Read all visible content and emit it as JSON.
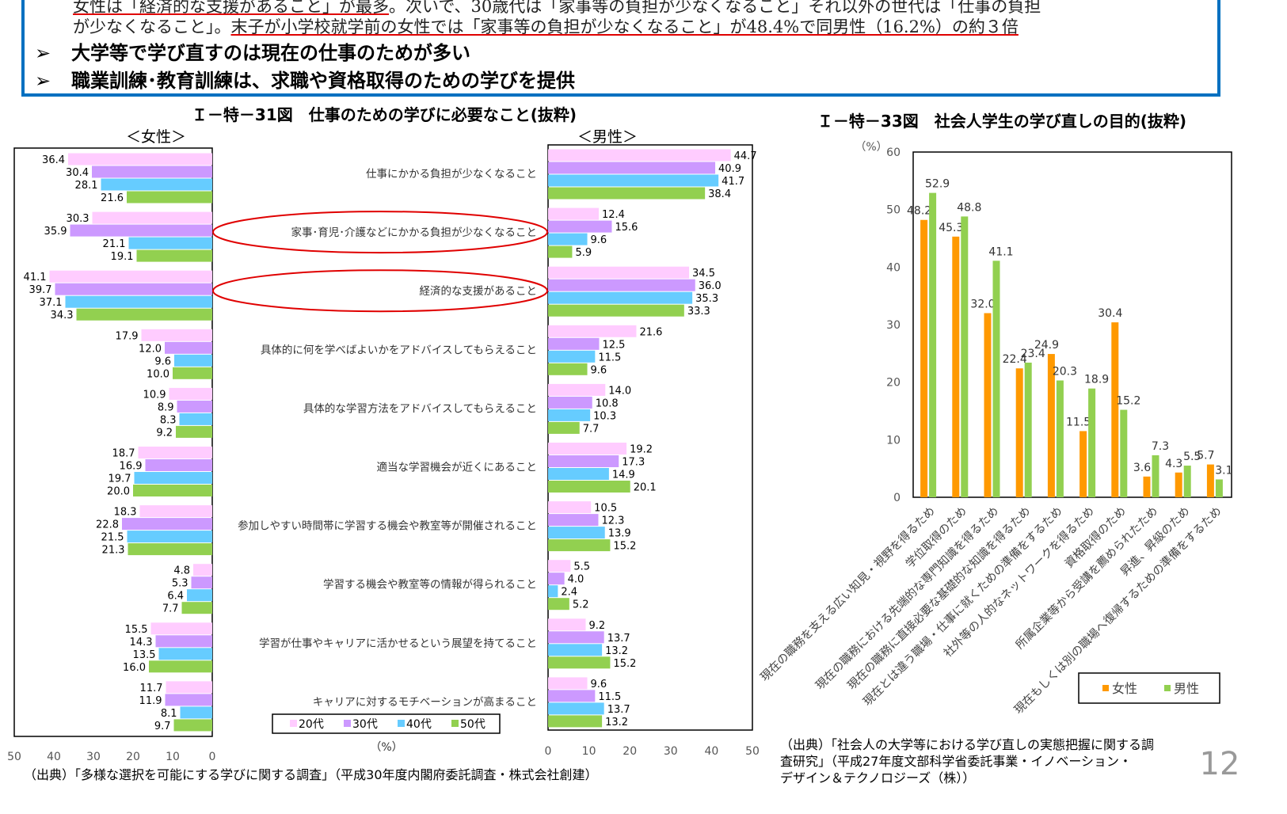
{
  "summary": {
    "line1_underlined": "女性は「経済的な支援があること」が最多",
    "line1_rest": "。次いで、30歳代は「家事等の負担が少なくなること」それ以外の世代は「仕事の負担",
    "line2_start": "が少なくなること」。",
    "line2_underlined": "末子が小学校就学前の女性では「家事等の負担が少なくなること」が48.4%で同男性（16.2%）の約３倍",
    "bullets": [
      "大学等で学び直すのは現在の仕事のためが多い",
      "職業訓練･教育訓練は、求職や資格取得のための学びを提供"
    ],
    "bullet_icon": "arrow-bullet-icon"
  },
  "colors": {
    "20s": "#ffccff",
    "30s": "#cc99ff",
    "40s": "#66ccff",
    "50s": "#92d050",
    "female": "#ff9900",
    "male": "#92d050",
    "frame": "#0070c0",
    "highlight": "#e00000"
  },
  "page_number": "12",
  "chart_data": [
    {
      "type": "bar",
      "orientation": "horizontal",
      "title": "Ｉ－特－31図　仕事のための学びに必要なこと(抜粋)",
      "panels": [
        "＜女性＞",
        "＜男性＞"
      ],
      "unit_label": "（%）",
      "xlim": [
        0,
        50
      ],
      "ticks": [
        "0",
        "10",
        "20",
        "30",
        "40",
        "50"
      ],
      "legend": [
        "20代",
        "30代",
        "40代",
        "50代"
      ],
      "legend_placement": "bottom-center",
      "highlighted_categories": [
        1,
        2
      ],
      "categories": [
        "仕事にかかる負担が少なくなること",
        "家事･育児･介護などにかかる負担が少なくなること",
        "経済的な支援があること",
        "具体的に何を学べばよいかをアドバイスしてもらえること",
        "具体的な学習方法をアドバイスしてもらえること",
        "適当な学習機会が近くにあること",
        "参加しやすい時間帯に学習する機会や教室等が開催されること",
        "学習する機会や教室等の情報が得られること",
        "学習が仕事やキャリアに活かせるという展望を持てること",
        "キャリアに対するモチベーションが高まること"
      ],
      "female": [
        [
          36.4,
          30.4,
          28.1,
          21.6
        ],
        [
          30.3,
          35.9,
          21.1,
          19.1
        ],
        [
          41.1,
          39.7,
          37.1,
          34.3
        ],
        [
          17.9,
          12.0,
          9.6,
          10.0
        ],
        [
          10.9,
          8.9,
          8.3,
          9.2
        ],
        [
          18.7,
          16.9,
          19.7,
          20.0
        ],
        [
          18.3,
          22.8,
          21.5,
          21.3
        ],
        [
          4.8,
          5.3,
          6.4,
          7.7
        ],
        [
          15.5,
          14.3,
          13.5,
          16.0
        ],
        [
          11.7,
          11.9,
          8.1,
          9.7
        ]
      ],
      "male": [
        [
          44.7,
          40.9,
          41.7,
          38.4
        ],
        [
          12.4,
          15.6,
          9.6,
          5.9
        ],
        [
          34.5,
          36.0,
          35.3,
          33.3
        ],
        [
          21.6,
          12.5,
          11.5,
          9.6
        ],
        [
          14.0,
          10.8,
          10.3,
          7.7
        ],
        [
          19.2,
          17.3,
          14.9,
          20.1
        ],
        [
          10.5,
          12.3,
          13.9,
          15.2
        ],
        [
          5.5,
          4.0,
          2.4,
          5.2
        ],
        [
          9.2,
          13.7,
          13.2,
          15.2
        ],
        [
          9.6,
          11.5,
          13.7,
          13.2
        ]
      ],
      "source": "（出典）「多様な選択を可能にする学びに関する調査」（平成30年度内閣府委託調査・株式会社創建）"
    },
    {
      "type": "bar",
      "title": "Ｉ－特－33図　社会人学生の学び直しの目的(抜粋)",
      "ylabel": "（%）",
      "ylim": [
        0,
        60
      ],
      "ticks": [
        "0",
        "10",
        "20",
        "30",
        "40",
        "50",
        "60"
      ],
      "legend": [
        "女性",
        "男性"
      ],
      "legend_placement": "bottom-right",
      "categories": [
        "現在の職務を支える広い知見・視野を得るため",
        "学位取得のため",
        "現在の職務における先端的な専門知識を得るため",
        "現在の職務に直接必要な基礎的な知識を得るため",
        "現在とは違う職場・仕事に就くための準備をするため",
        "社外等の人的なネットワークを得るため",
        "資格取得のため",
        "所属企業等から受講を薦められたため",
        "昇進、昇級のため",
        "現在もしくは別の職場へ復帰するための準備をするため"
      ],
      "series": [
        {
          "name": "女性",
          "values": [
            48.2,
            45.3,
            32.0,
            22.4,
            24.9,
            11.5,
            30.4,
            3.6,
            4.3,
            5.7
          ]
        },
        {
          "name": "男性",
          "values": [
            52.9,
            48.8,
            41.1,
            23.4,
            20.3,
            18.9,
            15.2,
            7.3,
            5.5,
            3.1
          ]
        }
      ],
      "source": [
        "（出典）「社会人の大学等における学び直しの実態把握に関する調",
        "査研究」（平成27年度文部科学省委託事業・イノベーション・",
        "デザイン＆テクノロジーズ（株））"
      ]
    }
  ]
}
